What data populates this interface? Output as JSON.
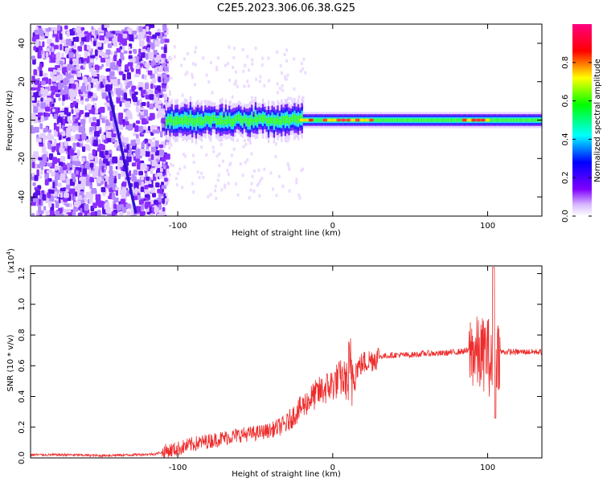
{
  "title": "C2E5.2023.306.06.38.G25",
  "chart_data": [
    {
      "type": "heatmap",
      "xlabel": "Height of straight line (km)",
      "ylabel": "Frequency (Hz)",
      "xlim": [
        -195,
        135
      ],
      "ylim": [
        -50,
        50
      ],
      "x_ticks": [
        -100,
        0,
        100
      ],
      "y_ticks": [
        -40,
        -20,
        0,
        20,
        40
      ],
      "colorbar": {
        "label": "Normalized spectral amplitude",
        "range": [
          0,
          1
        ],
        "ticks": [
          0.0,
          0.2,
          0.4,
          0.6,
          0.8
        ],
        "colors": [
          "#ffffff",
          "#8000ff",
          "#0000ff",
          "#00ffff",
          "#00ff00",
          "#ffff00",
          "#ff0000",
          "#ff0080"
        ]
      },
      "features": {
        "noise_region_x": [
          -195,
          -108
        ],
        "signal_band_center_hz": 0,
        "band_halfwidth_hz": [
          4,
          2
        ]
      }
    },
    {
      "type": "line",
      "xlabel": "Height of straight line (km)",
      "ylabel": "SNR (10 * v/v)",
      "y_exponent_label": "(x10",
      "y_exponent_sup": "4",
      "y_exponent_close": ")",
      "xlim": [
        -195,
        135
      ],
      "ylim": [
        0,
        1.25
      ],
      "x_ticks": [
        -100,
        0,
        100
      ],
      "y_ticks": [
        0.0,
        0.2,
        0.4,
        0.6,
        0.8,
        1.0,
        1.2
      ],
      "series": [
        {
          "color": "#ee2c2c",
          "x": [
            -195,
            -170,
            -150,
            -130,
            -115,
            -100,
            -90,
            -80,
            -70,
            -60,
            -50,
            -40,
            -30,
            -25,
            -20,
            -15,
            -10,
            -5,
            0,
            5,
            10,
            15,
            20,
            30,
            40,
            50,
            60,
            70,
            80,
            90,
            95,
            100,
            103,
            105,
            110,
            120,
            135
          ],
          "y": [
            0.02,
            0.02,
            0.015,
            0.02,
            0.025,
            0.06,
            0.09,
            0.11,
            0.13,
            0.15,
            0.16,
            0.18,
            0.22,
            0.28,
            0.33,
            0.38,
            0.42,
            0.45,
            0.48,
            0.52,
            0.5,
            0.58,
            0.62,
            0.66,
            0.67,
            0.67,
            0.68,
            0.68,
            0.69,
            0.7,
            0.66,
            0.7,
            0.55,
            0.69,
            0.69,
            0.69,
            0.69
          ]
        }
      ]
    }
  ]
}
